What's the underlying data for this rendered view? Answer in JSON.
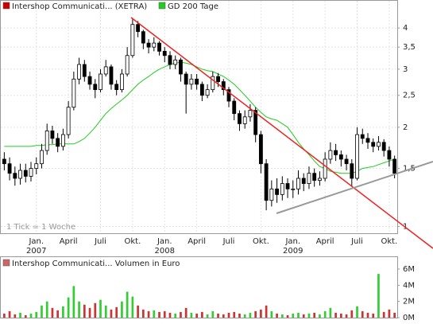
{
  "chart_data": [
    {
      "type": "candlestick",
      "title": "Intershop Communicati... (XETRA)",
      "color": "#cc0000",
      "categories": [
        null,
        null,
        null,
        null,
        null,
        null,
        "Jan.\n2007",
        null,
        null,
        null,
        null,
        null,
        "April",
        null,
        null,
        null,
        null,
        null,
        "Juli",
        null,
        null,
        null,
        null,
        null,
        "Okt.",
        null,
        null,
        null,
        null,
        null,
        "Jan.\n2008",
        null,
        null,
        null,
        null,
        null,
        "April",
        null,
        null,
        null,
        null,
        null,
        "Juli",
        null,
        null,
        null,
        null,
        null,
        "Okt.",
        null,
        null,
        null,
        null,
        null,
        "Jan.\n2009",
        null,
        null,
        null,
        null,
        null,
        "April",
        null,
        null,
        null,
        null,
        null,
        "Juli",
        null,
        null,
        null,
        null,
        null,
        "Okt.",
        null
      ],
      "open": [
        1.6,
        1.55,
        1.45,
        1.4,
        1.48,
        1.42,
        1.5,
        1.55,
        1.7,
        1.95,
        1.85,
        1.75,
        1.9,
        2.3,
        2.8,
        3.1,
        2.85,
        2.7,
        2.6,
        2.9,
        3.05,
        2.7,
        2.6,
        2.9,
        3.3,
        4.1,
        3.9,
        3.6,
        3.5,
        3.6,
        3.4,
        3.3,
        3.1,
        3.2,
        2.9,
        2.7,
        2.8,
        2.7,
        2.5,
        2.6,
        2.85,
        2.75,
        2.6,
        2.4,
        2.2,
        2.05,
        2.15,
        2.25,
        1.9,
        1.55,
        1.2,
        1.3,
        1.25,
        1.35,
        1.3,
        1.3,
        1.4,
        1.35,
        1.45,
        1.38,
        1.4,
        1.6,
        1.7,
        1.65,
        1.6,
        1.55,
        1.4,
        1.9,
        1.85,
        1.8,
        1.75,
        1.8,
        1.7,
        1.6
      ],
      "high": [
        1.68,
        1.62,
        1.52,
        1.55,
        1.55,
        1.57,
        1.62,
        1.78,
        2.05,
        2.02,
        1.92,
        1.98,
        2.4,
        2.95,
        3.25,
        3.2,
        2.95,
        2.8,
        3.0,
        3.2,
        3.1,
        2.78,
        3.0,
        3.5,
        4.25,
        4.2,
        3.95,
        3.7,
        3.75,
        3.65,
        3.5,
        3.4,
        3.3,
        3.25,
        2.95,
        2.9,
        2.9,
        2.75,
        2.7,
        2.95,
        2.92,
        2.8,
        2.65,
        2.45,
        2.25,
        2.25,
        2.35,
        2.3,
        1.95,
        1.6,
        1.38,
        1.4,
        1.42,
        1.4,
        1.38,
        1.48,
        1.45,
        1.52,
        1.5,
        1.47,
        1.68,
        1.8,
        1.78,
        1.7,
        1.65,
        1.6,
        2.0,
        1.98,
        1.92,
        1.85,
        1.88,
        1.84,
        1.75,
        1.64
      ],
      "low": [
        1.48,
        1.38,
        1.33,
        1.34,
        1.36,
        1.37,
        1.44,
        1.5,
        1.65,
        1.78,
        1.68,
        1.7,
        1.85,
        2.25,
        2.7,
        2.75,
        2.6,
        2.45,
        2.55,
        2.85,
        2.6,
        2.5,
        2.55,
        2.85,
        3.25,
        3.75,
        3.45,
        3.35,
        3.4,
        3.3,
        3.15,
        3.0,
        3.0,
        2.75,
        2.2,
        2.6,
        2.6,
        2.4,
        2.45,
        2.55,
        2.65,
        2.5,
        2.3,
        2.1,
        1.95,
        1.98,
        2.08,
        1.8,
        1.45,
        1.12,
        1.15,
        1.18,
        1.2,
        1.22,
        1.22,
        1.25,
        1.28,
        1.3,
        1.32,
        1.33,
        1.37,
        1.55,
        1.58,
        1.52,
        1.48,
        1.32,
        1.38,
        1.78,
        1.72,
        1.68,
        1.7,
        1.63,
        1.52,
        1.4
      ],
      "close": [
        1.55,
        1.45,
        1.4,
        1.48,
        1.42,
        1.5,
        1.55,
        1.7,
        1.95,
        1.85,
        1.75,
        1.9,
        2.3,
        2.8,
        3.1,
        2.85,
        2.7,
        2.6,
        2.9,
        3.05,
        2.7,
        2.6,
        2.9,
        3.3,
        4.1,
        3.9,
        3.6,
        3.5,
        3.6,
        3.4,
        3.3,
        3.1,
        3.2,
        2.9,
        2.7,
        2.8,
        2.7,
        2.5,
        2.6,
        2.85,
        2.75,
        2.6,
        2.4,
        2.2,
        2.05,
        2.15,
        2.25,
        1.9,
        1.55,
        1.2,
        1.3,
        1.25,
        1.35,
        1.3,
        1.3,
        1.4,
        1.35,
        1.45,
        1.38,
        1.4,
        1.6,
        1.7,
        1.65,
        1.6,
        1.55,
        1.4,
        1.9,
        1.85,
        1.8,
        1.75,
        1.8,
        1.7,
        1.6,
        1.45
      ],
      "series": [
        {
          "name": "GD 200 Tage",
          "color": "#22cc22",
          "values": [
            1.75,
            1.75,
            1.75,
            1.75,
            1.75,
            1.75,
            1.76,
            1.76,
            1.77,
            1.77,
            1.78,
            1.78,
            1.78,
            1.78,
            1.81,
            1.85,
            1.92,
            2.0,
            2.1,
            2.2,
            2.28,
            2.35,
            2.42,
            2.5,
            2.6,
            2.7,
            2.78,
            2.85,
            2.93,
            3.0,
            3.05,
            3.1,
            3.13,
            3.15,
            3.13,
            3.1,
            3.05,
            3.0,
            2.97,
            2.95,
            2.9,
            2.85,
            2.78,
            2.7,
            2.6,
            2.5,
            2.4,
            2.3,
            2.22,
            2.15,
            2.12,
            2.1,
            2.05,
            2.0,
            1.9,
            1.8,
            1.72,
            1.65,
            1.58,
            1.52,
            1.5,
            1.47,
            1.46,
            1.45,
            1.45,
            1.45,
            1.47,
            1.5,
            1.51,
            1.52,
            1.54,
            1.56,
            1.58,
            1.6
          ]
        }
      ],
      "ylim": [
        0.97,
        4.4
      ],
      "yticks": [
        1,
        {
          "value": 1.5,
          "label": "1,5"
        },
        2,
        {
          "value": 2.5,
          "label": "2,5"
        },
        3,
        {
          "value": 3.5,
          "label": "3,5"
        },
        4
      ],
      "log_scale": true,
      "grid": true,
      "note": "1 Tick = 1 Woche"
    },
    {
      "type": "bar",
      "title": "Intershop Communicati... Volumen in Euro",
      "color": "#cc6666",
      "up_color": "#33cc33",
      "down_color": "#cc3333",
      "values": [
        500000,
        800000,
        400000,
        600000,
        300000,
        500000,
        700000,
        1500000,
        2000000,
        1200000,
        900000,
        1400000,
        2500000,
        3900000,
        2000000,
        1600000,
        1200000,
        1800000,
        2200000,
        1500000,
        1000000,
        1300000,
        2000000,
        3200000,
        2600000,
        1500000,
        1000000,
        800000,
        900000,
        700000,
        800000,
        600000,
        500000,
        700000,
        1200000,
        600000,
        500000,
        700000,
        400000,
        800000,
        500000,
        400000,
        600000,
        700000,
        500000,
        400000,
        600000,
        800000,
        1000000,
        1500000,
        800000,
        500000,
        400000,
        300000,
        500000,
        600000,
        400000,
        500000,
        600000,
        400000,
        800000,
        1200000,
        600000,
        500000,
        400000,
        900000,
        1400000,
        800000,
        600000,
        500000,
        5400000,
        700000,
        1000000,
        600000
      ],
      "ylim": [
        0,
        6000000
      ],
      "yticks": [
        {
          "value": 0,
          "label": "0M"
        },
        {
          "value": 2000000,
          "label": "2M"
        },
        {
          "value": 4000000,
          "label": "4M"
        },
        {
          "value": 6000000,
          "label": "6M"
        }
      ]
    }
  ]
}
